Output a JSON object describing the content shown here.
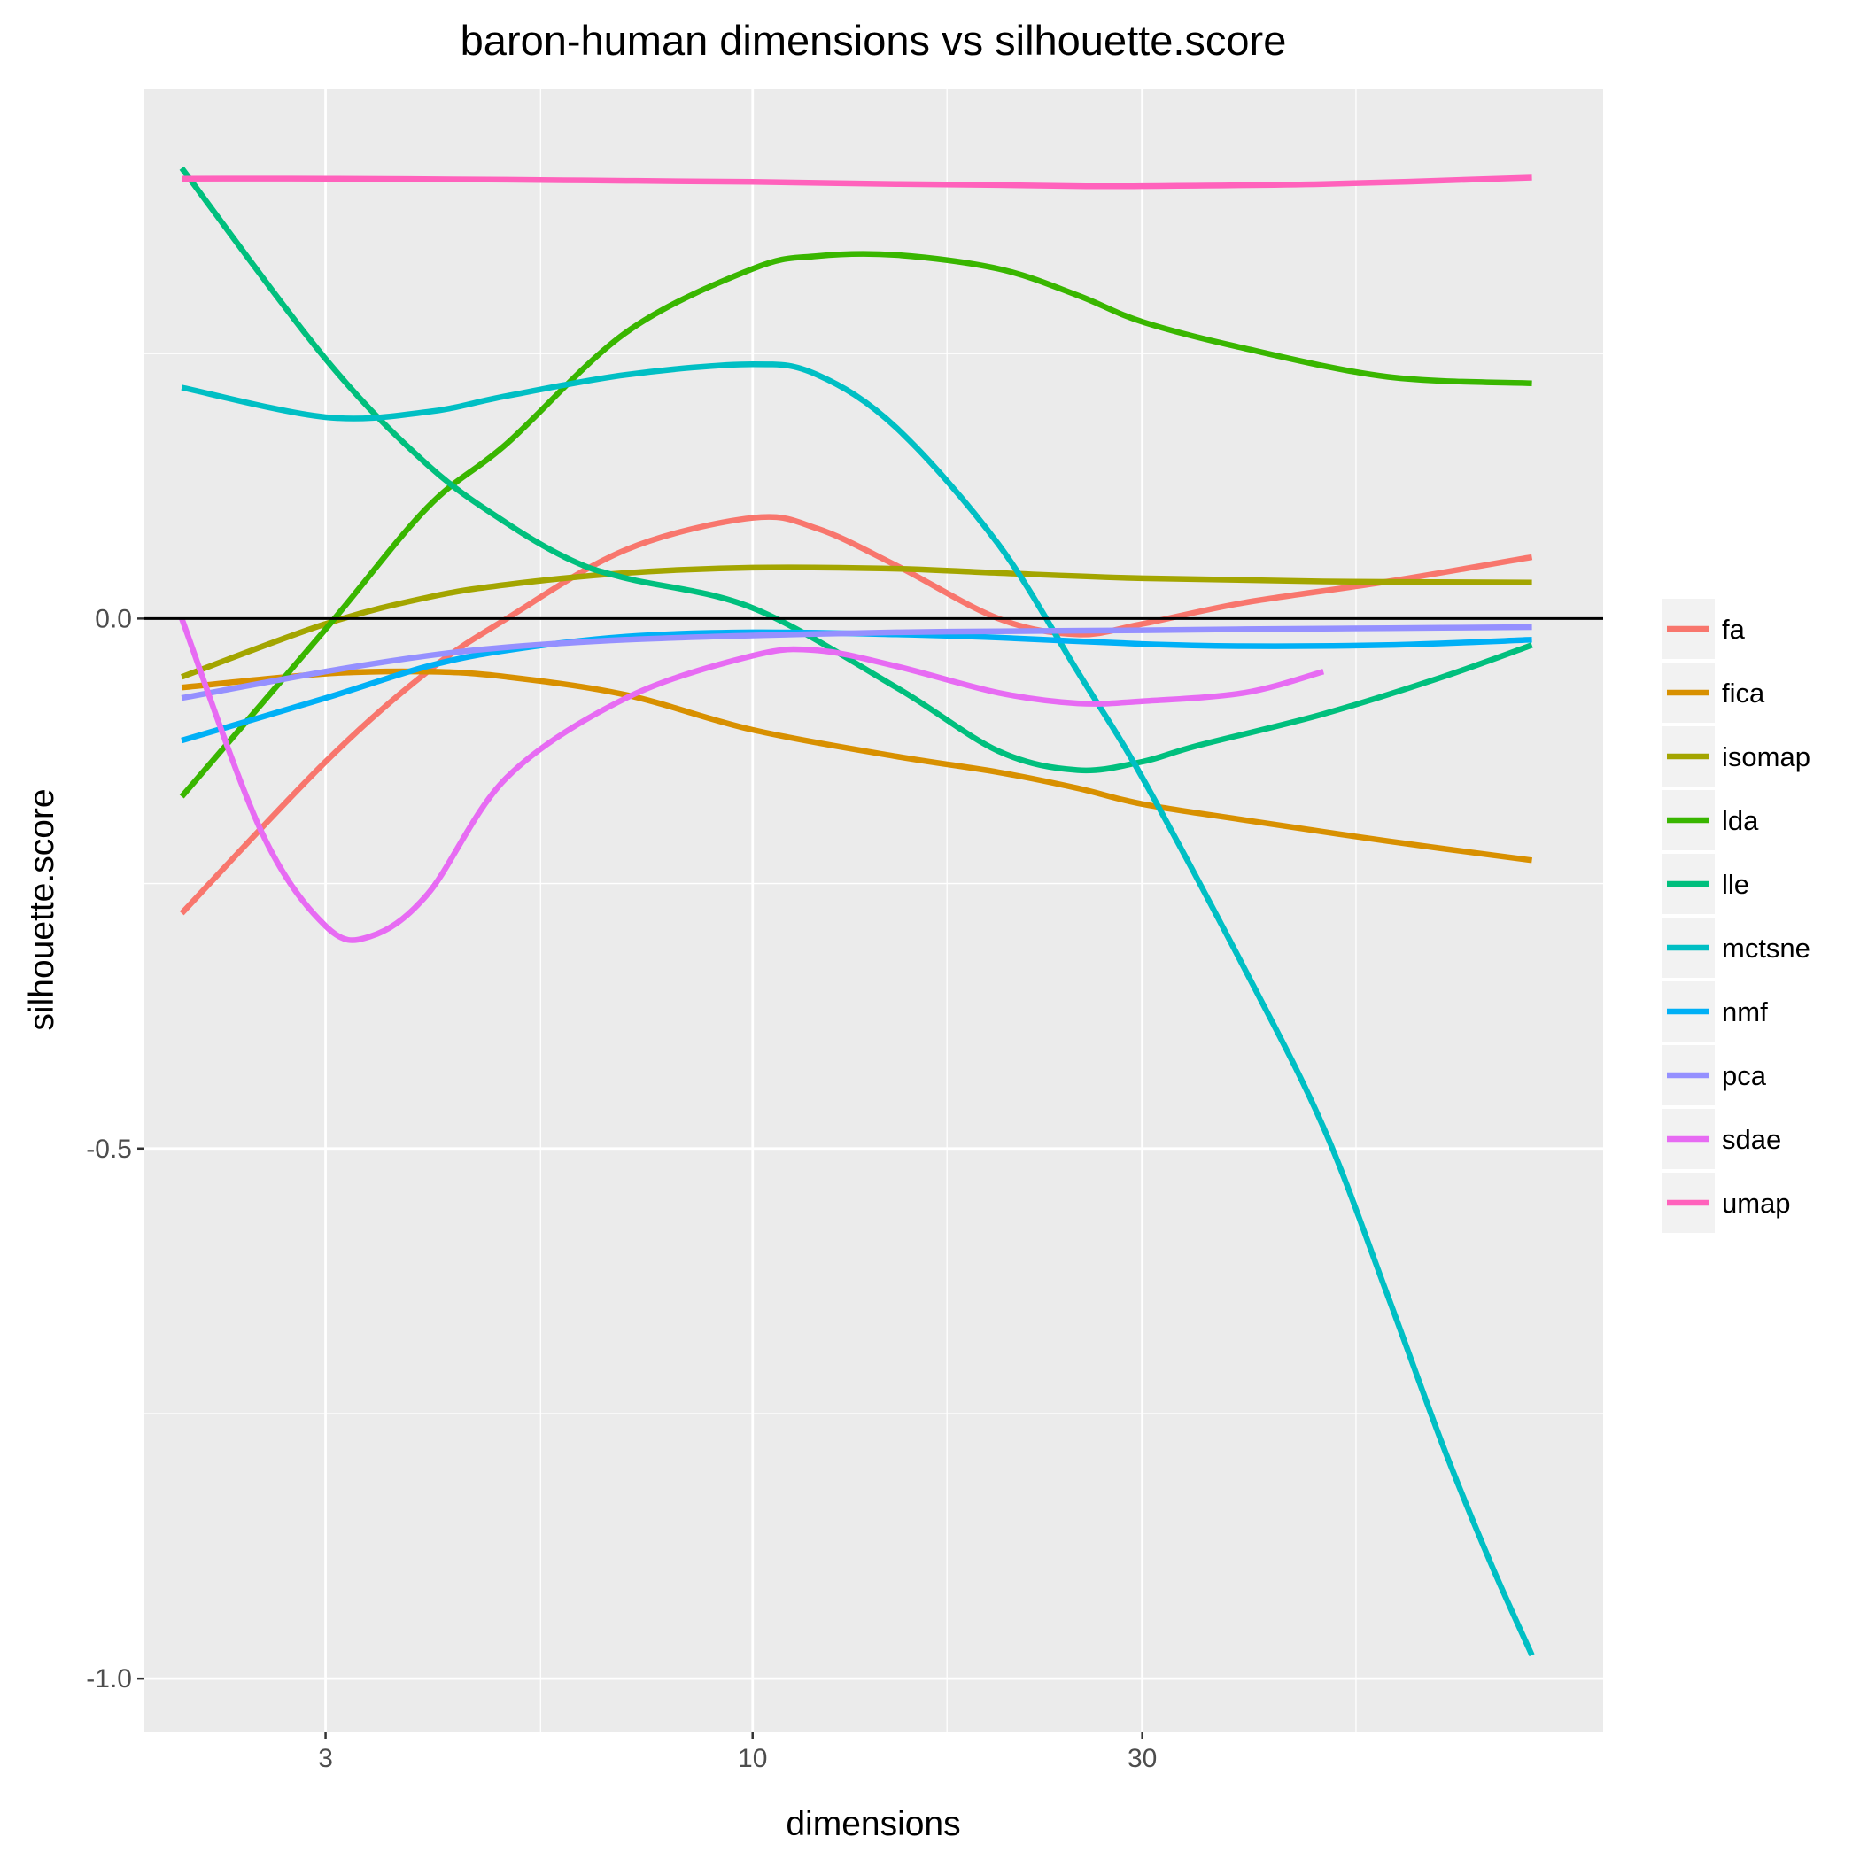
{
  "chart_data": {
    "type": "line",
    "title": "baron-human dimensions vs silhouette.score",
    "xlabel": "dimensions",
    "ylabel": "silhouette.score",
    "x_scale": "log10",
    "xlim": [
      1.8,
      110
    ],
    "ylim": [
      -1.05,
      0.5
    ],
    "x_ticks": [
      {
        "value": 3,
        "label": "3"
      },
      {
        "value": 10,
        "label": "10"
      },
      {
        "value": 30,
        "label": "30"
      }
    ],
    "x_minor_ticks": [
      5.5,
      17.3,
      54.8
    ],
    "y_ticks": [
      {
        "value": 0,
        "label": "0.0"
      },
      {
        "value": -0.5,
        "label": "-0.5"
      },
      {
        "value": -1,
        "label": "-1.0"
      }
    ],
    "y_minor_ticks": [
      0.25,
      -0.25,
      -0.75
    ],
    "reference_line": {
      "y": 0,
      "color": "#000000"
    },
    "grid": true,
    "legend_position": "right",
    "series": [
      {
        "name": "fa",
        "color": "#F8766D",
        "x": [
          2,
          3,
          4,
          5,
          7,
          10,
          12,
          15,
          20,
          25,
          30,
          40,
          60,
          90
        ],
        "y": [
          -0.278,
          -0.135,
          -0.05,
          0.0,
          0.065,
          0.095,
          0.085,
          0.05,
          0.0,
          -0.015,
          -0.005,
          0.015,
          0.035,
          0.058
        ]
      },
      {
        "name": "fica",
        "color": "#D89000",
        "x": [
          2,
          3,
          4,
          5,
          7,
          10,
          15,
          20,
          25,
          30,
          40,
          60,
          90
        ],
        "y": [
          -0.065,
          -0.052,
          -0.05,
          -0.055,
          -0.072,
          -0.105,
          -0.13,
          -0.145,
          -0.16,
          -0.175,
          -0.19,
          -0.21,
          -0.228
        ]
      },
      {
        "name": "isomap",
        "color": "#A3A500",
        "x": [
          2,
          3,
          4,
          5,
          7,
          10,
          15,
          20,
          30,
          50,
          90
        ],
        "y": [
          -0.055,
          -0.005,
          0.02,
          0.032,
          0.043,
          0.048,
          0.047,
          0.043,
          0.038,
          0.035,
          0.034
        ]
      },
      {
        "name": "lda",
        "color": "#39B600",
        "x": [
          2,
          3,
          4,
          5,
          7,
          10,
          12,
          15,
          20,
          25,
          30,
          40,
          60,
          90
        ],
        "y": [
          -0.168,
          -0.01,
          0.105,
          0.165,
          0.27,
          0.33,
          0.342,
          0.343,
          0.33,
          0.305,
          0.28,
          0.255,
          0.228,
          0.222
        ]
      },
      {
        "name": "lle",
        "color": "#00BF7D",
        "x": [
          2,
          3,
          4,
          5,
          6,
          7,
          10,
          15,
          20,
          25,
          30,
          35,
          50,
          70,
          90
        ],
        "y": [
          0.425,
          0.245,
          0.145,
          0.09,
          0.055,
          0.038,
          0.01,
          -0.065,
          -0.125,
          -0.143,
          -0.135,
          -0.12,
          -0.09,
          -0.055,
          -0.025
        ]
      },
      {
        "name": "mctsne",
        "color": "#00BFC4",
        "x": [
          2,
          3,
          4,
          5,
          7,
          10,
          12,
          15,
          20,
          25,
          30,
          40,
          50,
          60,
          70,
          80,
          90
        ],
        "y": [
          0.218,
          0.19,
          0.195,
          0.21,
          0.23,
          0.24,
          0.23,
          0.18,
          0.07,
          -0.05,
          -0.15,
          -0.33,
          -0.48,
          -0.64,
          -0.78,
          -0.89,
          -0.978
        ]
      },
      {
        "name": "nmf",
        "color": "#00B0F6",
        "x": [
          2,
          3,
          4,
          5,
          7,
          10,
          15,
          20,
          30,
          40,
          60,
          90
        ],
        "y": [
          -0.115,
          -0.075,
          -0.045,
          -0.03,
          -0.017,
          -0.013,
          -0.015,
          -0.018,
          -0.024,
          -0.026,
          -0.025,
          -0.02
        ]
      },
      {
        "name": "pca",
        "color": "#9590FF",
        "x": [
          2,
          3,
          4,
          5,
          7,
          10,
          15,
          20,
          30,
          40,
          60,
          90
        ],
        "y": [
          -0.075,
          -0.05,
          -0.035,
          -0.027,
          -0.02,
          -0.016,
          -0.013,
          -0.012,
          -0.011,
          -0.01,
          -0.009,
          -0.008
        ]
      },
      {
        "name": "sdae",
        "color": "#E76BF3",
        "x": [
          2,
          2.5,
          3,
          3.4,
          4,
          5,
          7,
          10,
          12,
          15,
          20,
          25,
          30,
          40,
          50
        ],
        "y": [
          0.0,
          -0.2,
          -0.29,
          -0.3,
          -0.26,
          -0.15,
          -0.075,
          -0.035,
          -0.03,
          -0.045,
          -0.07,
          -0.08,
          -0.078,
          -0.07,
          -0.05
        ]
      },
      {
        "name": "umap",
        "color": "#FF62BC",
        "x": [
          2,
          3,
          5,
          7,
          10,
          15,
          20,
          25,
          30,
          50,
          90
        ],
        "y": [
          0.415,
          0.415,
          0.414,
          0.413,
          0.412,
          0.41,
          0.409,
          0.408,
          0.408,
          0.41,
          0.416
        ]
      }
    ]
  }
}
